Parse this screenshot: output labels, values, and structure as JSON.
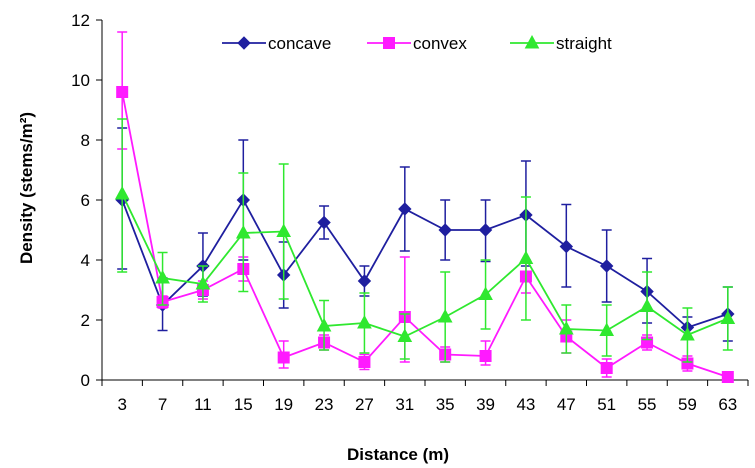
{
  "chart_data": {
    "type": "line",
    "title": "",
    "xlabel": "Distance (m)",
    "ylabel": "Density (stems/m²)",
    "ylim": [
      0,
      12
    ],
    "yticks": [
      0,
      2,
      4,
      6,
      8,
      10,
      12
    ],
    "categories": [
      "3",
      "7",
      "11",
      "15",
      "19",
      "23",
      "27",
      "31",
      "35",
      "39",
      "43",
      "47",
      "51",
      "55",
      "59",
      "63"
    ],
    "legend_position": "top",
    "grid": false,
    "series": [
      {
        "name": "concave",
        "color": "#1f1f9f",
        "marker": "diamond",
        "values": [
          6.0,
          2.5,
          3.8,
          6.0,
          3.5,
          5.25,
          3.3,
          5.7,
          5.0,
          5.0,
          5.5,
          4.45,
          3.8,
          2.95,
          1.75,
          2.2
        ],
        "err_low": [
          3.7,
          1.65,
          2.8,
          4.0,
          2.4,
          4.7,
          2.8,
          4.3,
          4.0,
          3.95,
          3.8,
          3.1,
          2.6,
          1.9,
          1.4,
          1.3
        ],
        "err_high": [
          8.4,
          3.4,
          4.9,
          8.0,
          4.6,
          5.8,
          3.8,
          7.1,
          6.0,
          6.0,
          7.3,
          5.85,
          5.0,
          4.05,
          2.1,
          3.1
        ]
      },
      {
        "name": "convex",
        "color": "#ff1aff",
        "marker": "square",
        "values": [
          9.6,
          2.6,
          3.0,
          3.7,
          0.75,
          1.25,
          0.6,
          2.1,
          0.85,
          0.8,
          3.45,
          1.45,
          0.4,
          1.25,
          0.55,
          0.1
        ],
        "err_low": [
          7.7,
          2.4,
          2.7,
          3.3,
          0.4,
          1.0,
          0.35,
          0.6,
          0.6,
          0.5,
          2.9,
          0.9,
          0.1,
          1.0,
          0.3,
          0.0
        ],
        "err_high": [
          11.6,
          2.8,
          3.3,
          4.1,
          1.3,
          1.5,
          0.85,
          4.1,
          1.1,
          1.3,
          4.0,
          2.0,
          0.7,
          1.5,
          0.8,
          0.2
        ]
      },
      {
        "name": "straight",
        "color": "#2fe82f",
        "marker": "triangle",
        "values": [
          6.2,
          3.4,
          3.2,
          4.9,
          4.95,
          1.8,
          1.9,
          1.45,
          2.1,
          2.85,
          4.05,
          1.7,
          1.65,
          2.45,
          1.5,
          2.05
        ],
        "err_low": [
          3.6,
          2.5,
          2.6,
          2.95,
          2.7,
          1.0,
          0.9,
          0.7,
          0.6,
          1.7,
          2.0,
          0.9,
          0.8,
          1.35,
          0.6,
          1.0
        ],
        "err_high": [
          8.7,
          4.25,
          3.8,
          6.9,
          7.2,
          2.65,
          2.9,
          2.2,
          3.6,
          4.0,
          6.1,
          2.5,
          2.5,
          3.6,
          2.4,
          3.1
        ]
      }
    ]
  }
}
